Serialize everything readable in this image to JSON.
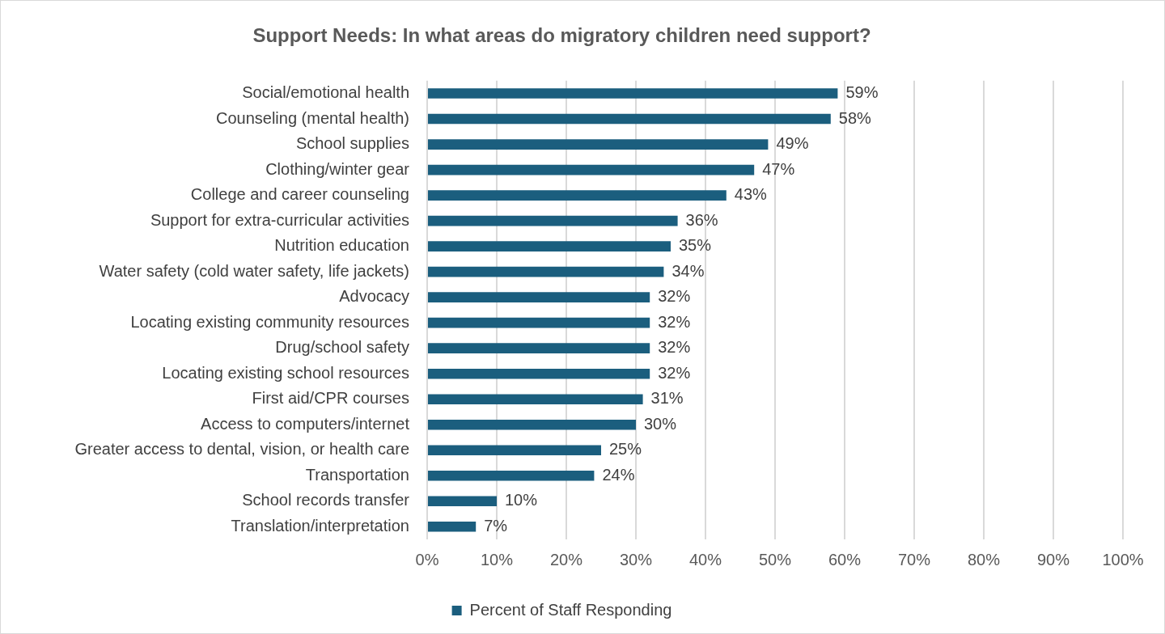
{
  "chart_data": {
    "type": "bar",
    "orientation": "horizontal",
    "title": "Support Needs: In what areas do migratory children need support?",
    "categories": [
      "Social/emotional health",
      "Counseling (mental health)",
      "School supplies",
      "Clothing/winter gear",
      "College and career counseling",
      "Support for extra-curricular activities",
      "Nutrition education",
      "Water safety (cold water safety, life jackets)",
      "Advocacy",
      "Locating existing community resources",
      "Drug/school safety",
      "Locating existing school resources",
      "First aid/CPR courses",
      "Access to computers/internet",
      "Greater access to dental, vision, or health care",
      "Transportation",
      "School records transfer",
      "Translation/interpretation"
    ],
    "series": [
      {
        "name": "Percent of Staff Responding",
        "color": "#1b5e7e",
        "values": [
          59,
          58,
          49,
          47,
          43,
          36,
          35,
          34,
          32,
          32,
          32,
          32,
          31,
          30,
          25,
          24,
          10,
          7
        ],
        "value_labels": [
          "59%",
          "58%",
          "49%",
          "47%",
          "43%",
          "36%",
          "35%",
          "34%",
          "32%",
          "32%",
          "32%",
          "32%",
          "31%",
          "30%",
          "25%",
          "24%",
          "10%",
          "7%"
        ]
      }
    ],
    "xlim": [
      0,
      100
    ],
    "xticks": [
      {
        "value": 0,
        "label": "0%"
      },
      {
        "value": 10,
        "label": "10%"
      },
      {
        "value": 20,
        "label": "20%"
      },
      {
        "value": 30,
        "label": "30%"
      },
      {
        "value": 40,
        "label": "40%"
      },
      {
        "value": 50,
        "label": "50%"
      },
      {
        "value": 60,
        "label": "60%"
      },
      {
        "value": 70,
        "label": "70%"
      },
      {
        "value": 80,
        "label": "80%"
      },
      {
        "value": 90,
        "label": "90%"
      },
      {
        "value": 100,
        "label": "100%"
      }
    ],
    "grid": "x",
    "legend": "bottom"
  }
}
